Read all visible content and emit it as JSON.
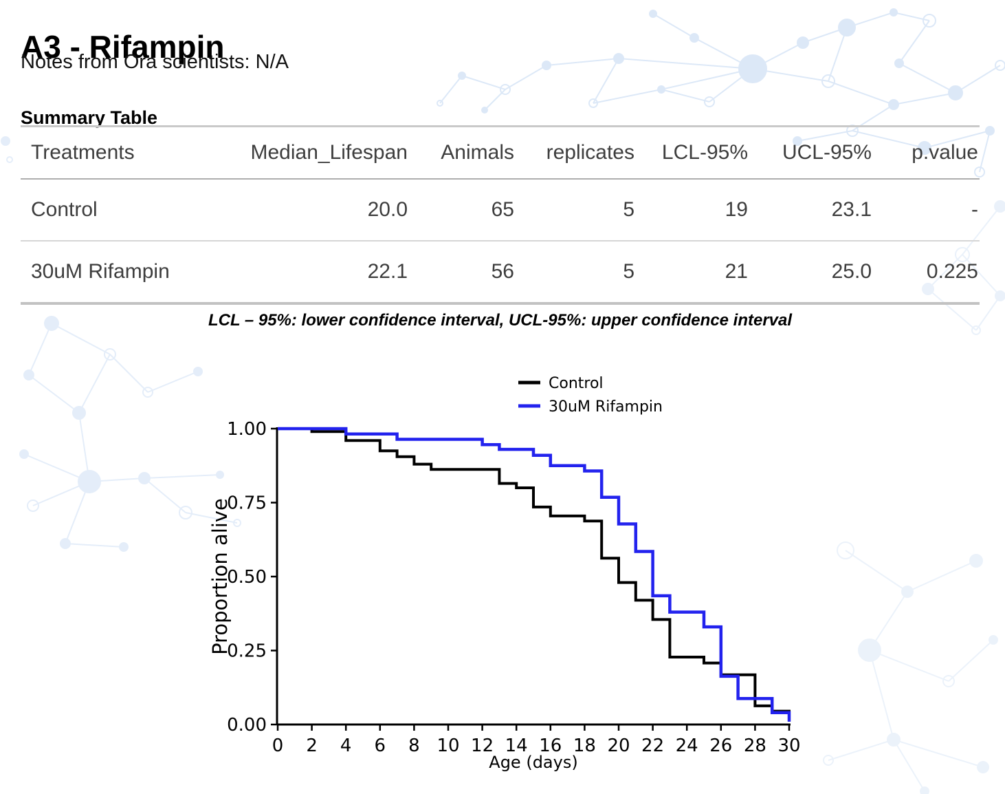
{
  "page": {
    "title": "A3 - Rifampin",
    "notes": "Notes from Ora scientists: N/A",
    "summary_heading": "Summary Table",
    "footnote": "LCL – 95%: lower confidence interval, UCL-95%: upper confidence interval"
  },
  "table": {
    "columns": [
      "Treatments",
      "Median_Lifespan",
      "Animals",
      "replicates",
      "LCL-95%",
      "UCL-95%",
      "p.value"
    ],
    "rows": [
      [
        "Control",
        "20.0",
        "65",
        "5",
        "19",
        "23.1",
        "-"
      ],
      [
        "30uM Rifampin",
        "22.1",
        "56",
        "5",
        "21",
        "25.0",
        "0.225"
      ]
    ]
  },
  "chart_data": {
    "type": "line",
    "subtype": "kaplan_meier_step",
    "title": "",
    "xlabel": "Age (days)",
    "ylabel": "Proportion alive",
    "xlim": [
      0,
      30
    ],
    "ylim": [
      0.0,
      1.0
    ],
    "grid": false,
    "legend_position": "top-center-inside",
    "x_ticks": [
      0,
      2,
      4,
      6,
      8,
      10,
      12,
      14,
      16,
      18,
      20,
      22,
      24,
      26,
      28,
      30
    ],
    "y_ticks": [
      0.0,
      0.25,
      0.5,
      0.75,
      1.0
    ],
    "y_tick_labels": [
      "0.00",
      "0.25",
      "0.50",
      "0.75",
      "1.00"
    ],
    "series": [
      {
        "name": "Control",
        "color": "#000000",
        "steps": [
          [
            0,
            1.0
          ],
          [
            2,
            0.99
          ],
          [
            4,
            0.96
          ],
          [
            6,
            0.925
          ],
          [
            7,
            0.905
          ],
          [
            8,
            0.88
          ],
          [
            9,
            0.862
          ],
          [
            13,
            0.815
          ],
          [
            14,
            0.8
          ],
          [
            15,
            0.735
          ],
          [
            16,
            0.705
          ],
          [
            18,
            0.688
          ],
          [
            19,
            0.562
          ],
          [
            20,
            0.48
          ],
          [
            21,
            0.42
          ],
          [
            22,
            0.355
          ],
          [
            23,
            0.228
          ],
          [
            25,
            0.208
          ],
          [
            26,
            0.168
          ],
          [
            28,
            0.063
          ],
          [
            29,
            0.045
          ],
          [
            30,
            0.01
          ]
        ]
      },
      {
        "name": "30uM Rifampin",
        "color": "#2222ee",
        "steps": [
          [
            0,
            1.0
          ],
          [
            4,
            0.982
          ],
          [
            7,
            0.964
          ],
          [
            12,
            0.946
          ],
          [
            13,
            0.93
          ],
          [
            15,
            0.91
          ],
          [
            16,
            0.875
          ],
          [
            18,
            0.857
          ],
          [
            19,
            0.768
          ],
          [
            20,
            0.678
          ],
          [
            21,
            0.585
          ],
          [
            22,
            0.435
          ],
          [
            23,
            0.38
          ],
          [
            25,
            0.33
          ],
          [
            26,
            0.163
          ],
          [
            27,
            0.088
          ],
          [
            29,
            0.04
          ],
          [
            30,
            0.01
          ]
        ]
      }
    ]
  },
  "colors": {
    "control_black": "#000000",
    "rifampin_blue": "#2222ee",
    "molecule_pattern_blue": "#d9e6f7"
  }
}
